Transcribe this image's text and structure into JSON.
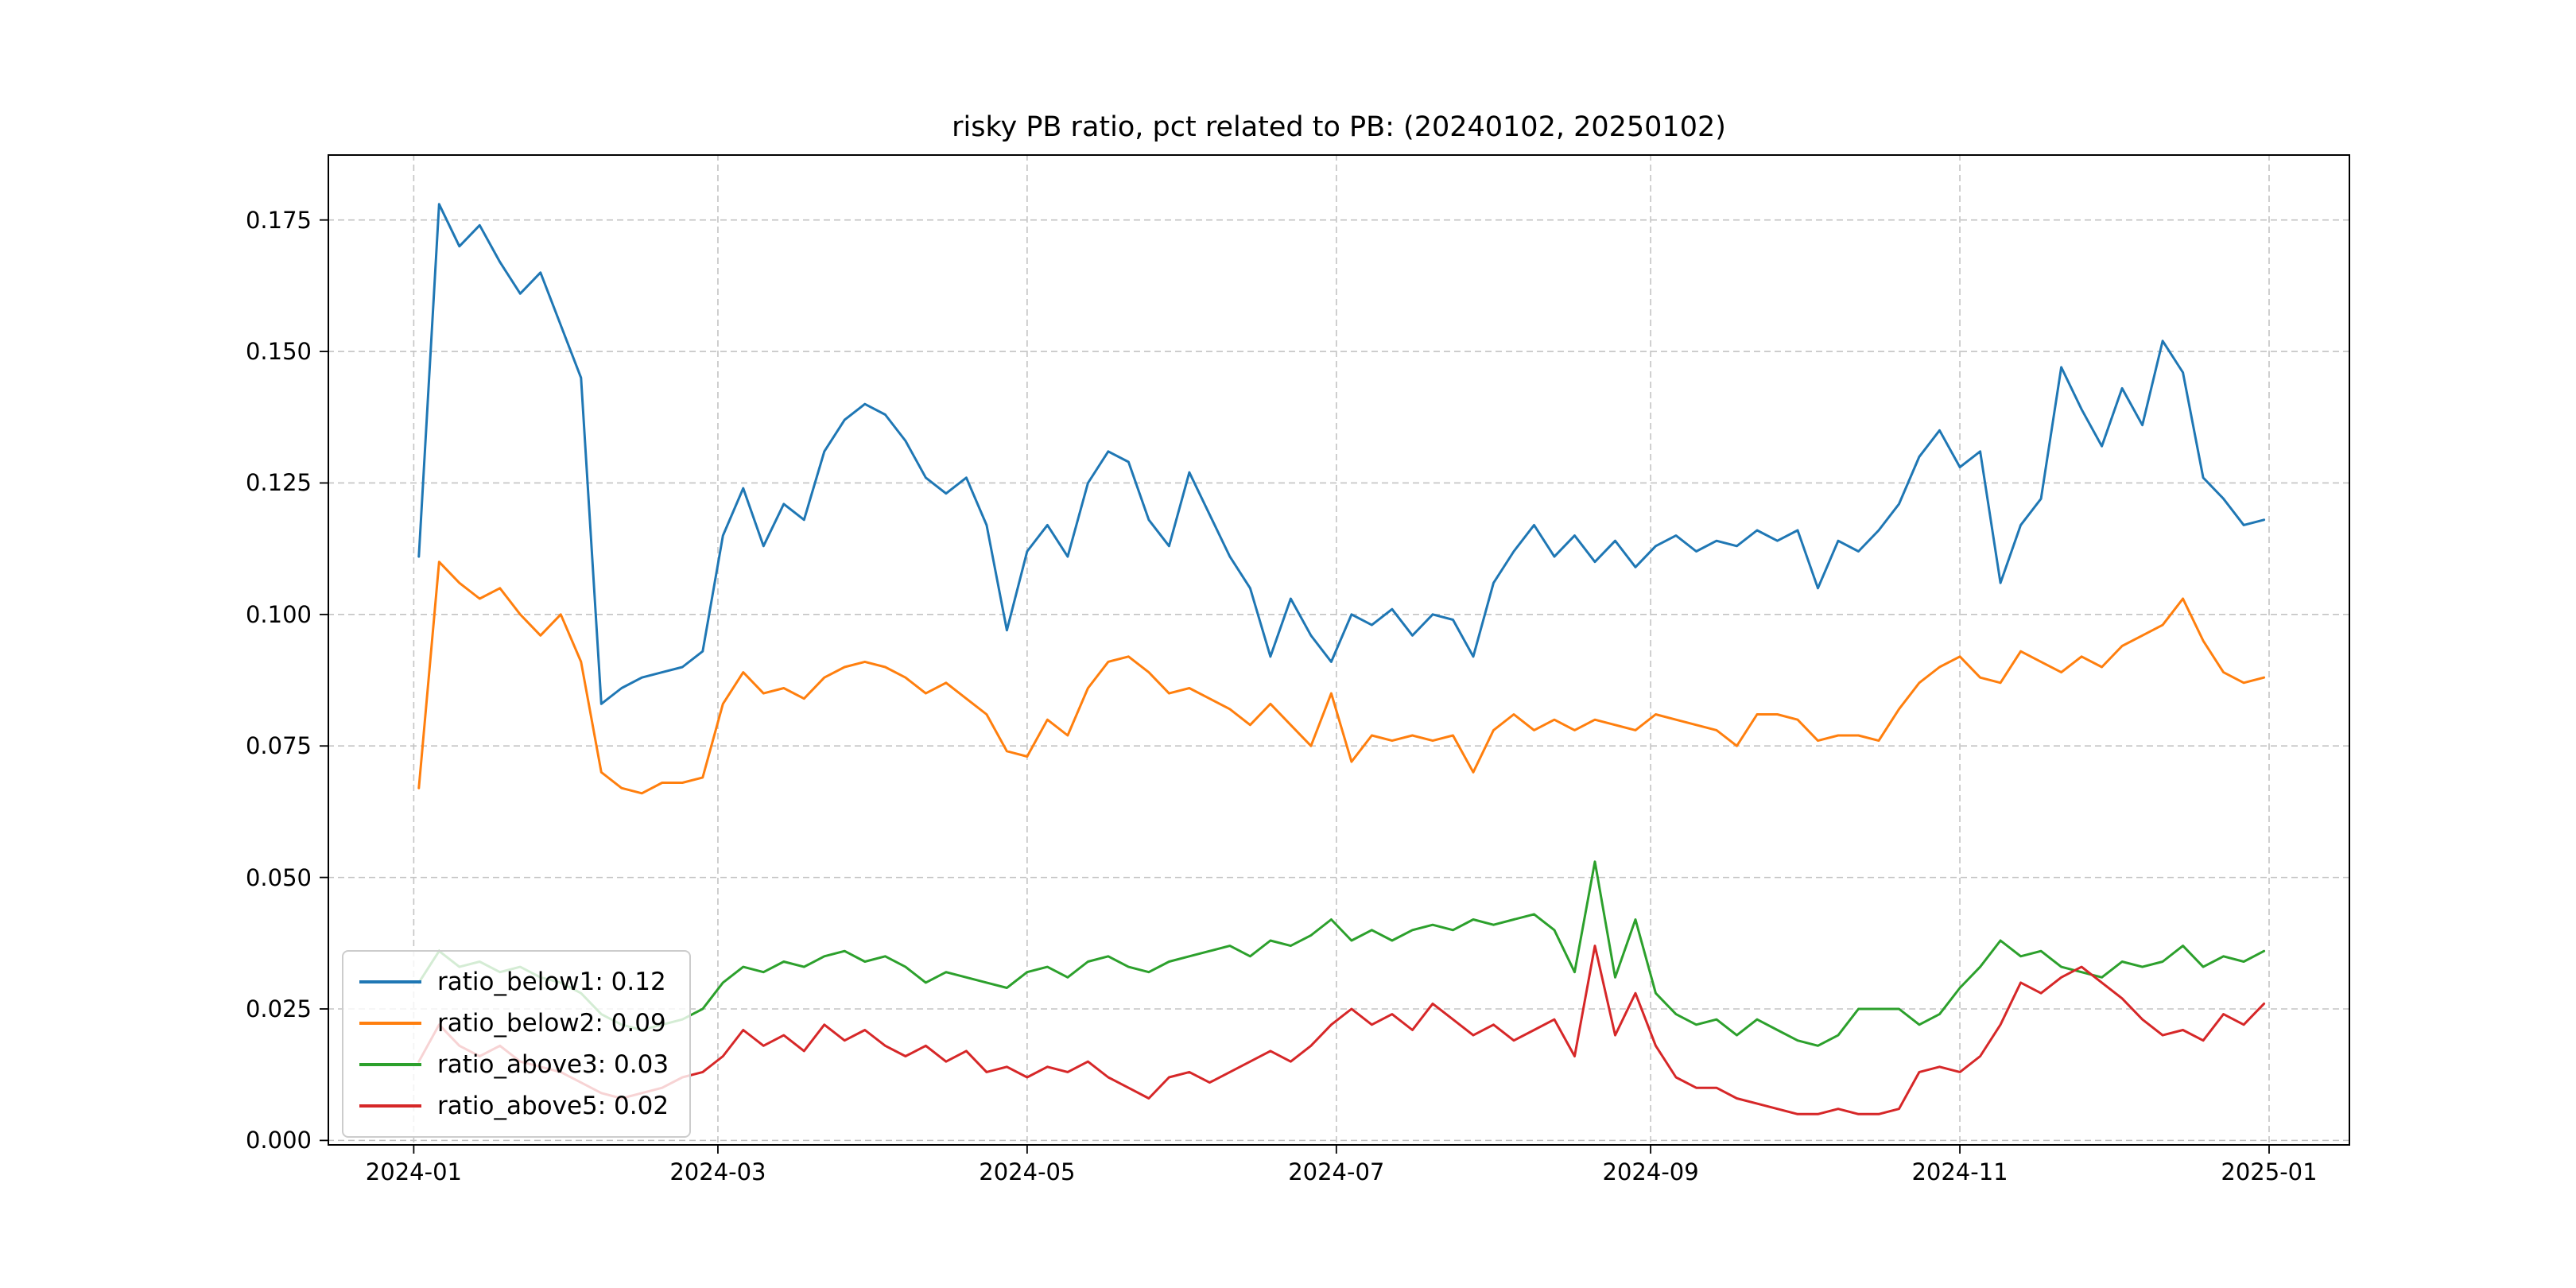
{
  "figure": {
    "background": "#ffffff"
  },
  "chart_data": {
    "type": "line",
    "title": "risky PB ratio, pct related to PB: (20240102, 20250102)",
    "xlabel": "",
    "ylabel": "",
    "x_unit": "days since 2024-01-01",
    "grid": true,
    "grid_style": "dashed",
    "grid_color": "#c3c3c3",
    "legend_position": "lower left",
    "xlim": [
      -17,
      382
    ],
    "ylim": [
      -0.001,
      0.1875
    ],
    "x_ticks": [
      {
        "pos": 0,
        "label": "2024-01"
      },
      {
        "pos": 60,
        "label": "2024-03"
      },
      {
        "pos": 121,
        "label": "2024-05"
      },
      {
        "pos": 182,
        "label": "2024-07"
      },
      {
        "pos": 244,
        "label": "2024-09"
      },
      {
        "pos": 305,
        "label": "2024-11"
      },
      {
        "pos": 366,
        "label": "2025-01"
      }
    ],
    "y_ticks": [
      {
        "pos": 0.0,
        "label": "0.000"
      },
      {
        "pos": 0.025,
        "label": "0.025"
      },
      {
        "pos": 0.05,
        "label": "0.050"
      },
      {
        "pos": 0.075,
        "label": "0.075"
      },
      {
        "pos": 0.1,
        "label": "0.100"
      },
      {
        "pos": 0.125,
        "label": "0.125"
      },
      {
        "pos": 0.15,
        "label": "0.150"
      },
      {
        "pos": 0.175,
        "label": "0.175"
      }
    ],
    "x": [
      1,
      5,
      9,
      13,
      17,
      21,
      25,
      29,
      33,
      37,
      41,
      45,
      49,
      53,
      57,
      61,
      65,
      69,
      73,
      77,
      81,
      85,
      89,
      93,
      97,
      101,
      105,
      109,
      113,
      117,
      121,
      125,
      129,
      133,
      137,
      141,
      145,
      149,
      153,
      157,
      161,
      165,
      169,
      173,
      177,
      181,
      185,
      189,
      193,
      197,
      201,
      205,
      209,
      213,
      217,
      221,
      225,
      229,
      233,
      237,
      241,
      245,
      249,
      253,
      257,
      261,
      265,
      269,
      273,
      277,
      281,
      285,
      289,
      293,
      297,
      301,
      305,
      309,
      313,
      317,
      321,
      325,
      329,
      333,
      337,
      341,
      345,
      349,
      353,
      357,
      361,
      365
    ],
    "series": [
      {
        "name": "ratio_below1: 0.12",
        "color": "#1f77b4",
        "values": [
          0.111,
          0.178,
          0.17,
          0.174,
          0.167,
          0.161,
          0.165,
          0.155,
          0.145,
          0.083,
          0.086,
          0.088,
          0.089,
          0.09,
          0.093,
          0.115,
          0.124,
          0.113,
          0.121,
          0.118,
          0.131,
          0.137,
          0.14,
          0.138,
          0.133,
          0.126,
          0.123,
          0.126,
          0.117,
          0.097,
          0.112,
          0.117,
          0.111,
          0.125,
          0.131,
          0.129,
          0.118,
          0.113,
          0.127,
          0.119,
          0.111,
          0.105,
          0.092,
          0.103,
          0.096,
          0.091,
          0.1,
          0.098,
          0.101,
          0.096,
          0.1,
          0.099,
          0.092,
          0.106,
          0.112,
          0.117,
          0.111,
          0.115,
          0.11,
          0.114,
          0.109,
          0.113,
          0.115,
          0.112,
          0.114,
          0.113,
          0.116,
          0.114,
          0.116,
          0.105,
          0.114,
          0.112,
          0.116,
          0.121,
          0.13,
          0.135,
          0.128,
          0.131,
          0.106,
          0.117,
          0.122,
          0.147,
          0.139,
          0.132,
          0.143,
          0.136,
          0.152,
          0.146,
          0.126,
          0.122,
          0.117,
          0.118
        ]
      },
      {
        "name": "ratio_below2: 0.09",
        "color": "#ff7f0e",
        "values": [
          0.067,
          0.11,
          0.106,
          0.103,
          0.105,
          0.1,
          0.096,
          0.1,
          0.091,
          0.07,
          0.067,
          0.066,
          0.068,
          0.068,
          0.069,
          0.083,
          0.089,
          0.085,
          0.086,
          0.084,
          0.088,
          0.09,
          0.091,
          0.09,
          0.088,
          0.085,
          0.087,
          0.084,
          0.081,
          0.074,
          0.073,
          0.08,
          0.077,
          0.086,
          0.091,
          0.092,
          0.089,
          0.085,
          0.086,
          0.084,
          0.082,
          0.079,
          0.083,
          0.079,
          0.075,
          0.085,
          0.072,
          0.077,
          0.076,
          0.077,
          0.076,
          0.077,
          0.07,
          0.078,
          0.081,
          0.078,
          0.08,
          0.078,
          0.08,
          0.079,
          0.078,
          0.081,
          0.08,
          0.079,
          0.078,
          0.075,
          0.081,
          0.081,
          0.08,
          0.076,
          0.077,
          0.077,
          0.076,
          0.082,
          0.087,
          0.09,
          0.092,
          0.088,
          0.087,
          0.093,
          0.091,
          0.089,
          0.092,
          0.09,
          0.094,
          0.096,
          0.098,
          0.103,
          0.095,
          0.089,
          0.087,
          0.088
        ]
      },
      {
        "name": "ratio_above3: 0.03",
        "color": "#2ca02c",
        "values": [
          0.03,
          0.036,
          0.033,
          0.034,
          0.032,
          0.033,
          0.031,
          0.03,
          0.028,
          0.024,
          0.022,
          0.021,
          0.022,
          0.023,
          0.025,
          0.03,
          0.033,
          0.032,
          0.034,
          0.033,
          0.035,
          0.036,
          0.034,
          0.035,
          0.033,
          0.03,
          0.032,
          0.031,
          0.03,
          0.029,
          0.032,
          0.033,
          0.031,
          0.034,
          0.035,
          0.033,
          0.032,
          0.034,
          0.035,
          0.036,
          0.037,
          0.035,
          0.038,
          0.037,
          0.039,
          0.042,
          0.038,
          0.04,
          0.038,
          0.04,
          0.041,
          0.04,
          0.042,
          0.041,
          0.042,
          0.043,
          0.04,
          0.032,
          0.053,
          0.031,
          0.042,
          0.028,
          0.024,
          0.022,
          0.023,
          0.02,
          0.023,
          0.021,
          0.019,
          0.018,
          0.02,
          0.025,
          0.025,
          0.025,
          0.022,
          0.024,
          0.029,
          0.033,
          0.038,
          0.035,
          0.036,
          0.033,
          0.032,
          0.031,
          0.034,
          0.033,
          0.034,
          0.037,
          0.033,
          0.035,
          0.034,
          0.036
        ]
      },
      {
        "name": "ratio_above5: 0.02",
        "color": "#d62728",
        "values": [
          0.015,
          0.022,
          0.018,
          0.016,
          0.018,
          0.015,
          0.014,
          0.013,
          0.011,
          0.009,
          0.008,
          0.009,
          0.01,
          0.012,
          0.013,
          0.016,
          0.021,
          0.018,
          0.02,
          0.017,
          0.022,
          0.019,
          0.021,
          0.018,
          0.016,
          0.018,
          0.015,
          0.017,
          0.013,
          0.014,
          0.012,
          0.014,
          0.013,
          0.015,
          0.012,
          0.01,
          0.008,
          0.012,
          0.013,
          0.011,
          0.013,
          0.015,
          0.017,
          0.015,
          0.018,
          0.022,
          0.025,
          0.022,
          0.024,
          0.021,
          0.026,
          0.023,
          0.02,
          0.022,
          0.019,
          0.021,
          0.023,
          0.016,
          0.037,
          0.02,
          0.028,
          0.018,
          0.012,
          0.01,
          0.01,
          0.008,
          0.007,
          0.006,
          0.005,
          0.005,
          0.006,
          0.005,
          0.005,
          0.006,
          0.013,
          0.014,
          0.013,
          0.016,
          0.022,
          0.03,
          0.028,
          0.031,
          0.033,
          0.03,
          0.027,
          0.023,
          0.02,
          0.021,
          0.019,
          0.024,
          0.022,
          0.026
        ]
      }
    ]
  }
}
